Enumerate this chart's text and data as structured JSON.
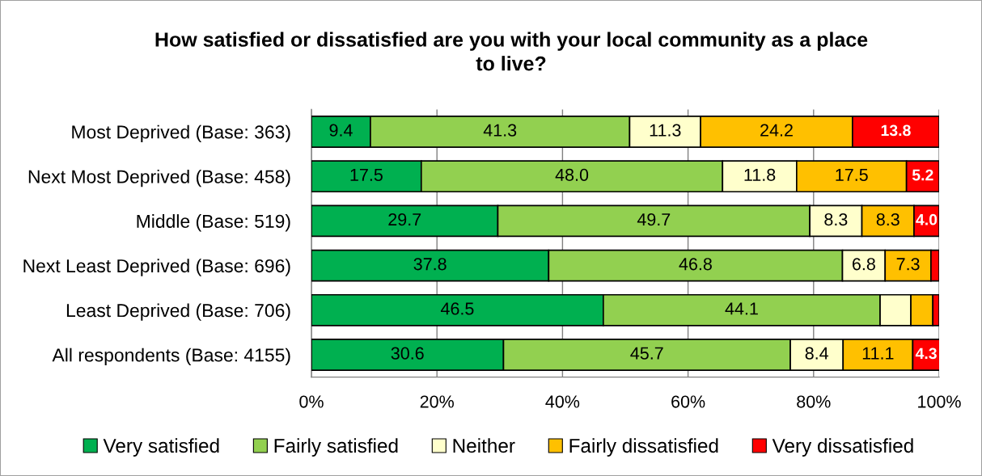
{
  "chart_data": {
    "type": "bar",
    "orientation": "horizontal",
    "stacked": true,
    "title": "How satisfied or dissatisfied are you with your local community as a place\nto live?",
    "categories": [
      "Most Deprived (Base: 363)",
      "Next Most Deprived (Base: 458)",
      "Middle (Base: 519)",
      "Next Least Deprived (Base: 696)",
      "Least Deprived (Base: 706)",
      "All respondents (Base: 4155)"
    ],
    "series": [
      {
        "name": "Very satisfied",
        "color": "#00b050",
        "values": [
          9.4,
          17.5,
          29.7,
          37.8,
          46.5,
          30.6
        ],
        "value_labels": [
          "9.4",
          "17.5",
          "29.7",
          "37.8",
          "46.5",
          "30.6"
        ]
      },
      {
        "name": "Fairly satisfied",
        "color": "#92d050",
        "values": [
          41.3,
          48.0,
          49.7,
          46.8,
          44.1,
          45.7
        ],
        "value_labels": [
          "41.3",
          "48.0",
          "49.7",
          "46.8",
          "44.1",
          "45.7"
        ]
      },
      {
        "name": "Neither",
        "color": "#ffffcc",
        "values": [
          11.3,
          11.8,
          8.3,
          6.8,
          4.9,
          8.4
        ],
        "value_labels": [
          "11.3",
          "11.8",
          "8.3",
          "6.8",
          null,
          "8.4"
        ]
      },
      {
        "name": "Fairly dissatisfied",
        "color": "#ffc000",
        "values": [
          24.2,
          17.5,
          8.3,
          7.3,
          3.5,
          11.1
        ],
        "value_labels": [
          "24.2",
          "17.5",
          "8.3",
          "7.3",
          null,
          "11.1"
        ]
      },
      {
        "name": "Very dissatisfied",
        "color": "#ff0000",
        "values": [
          13.8,
          5.2,
          4.0,
          1.3,
          1.0,
          4.3
        ],
        "value_labels": [
          "13.8",
          "5.2",
          "4.0",
          null,
          null,
          "4.3"
        ]
      }
    ],
    "xlim": [
      0,
      100
    ],
    "xticks": [
      {
        "value": 0,
        "label": "0%"
      },
      {
        "value": 20,
        "label": "20%"
      },
      {
        "value": 40,
        "label": "40%"
      },
      {
        "value": 60,
        "label": "60%"
      },
      {
        "value": 80,
        "label": "80%"
      },
      {
        "value": 100,
        "label": "100%"
      }
    ],
    "grid": "x",
    "legend": "bottom"
  }
}
